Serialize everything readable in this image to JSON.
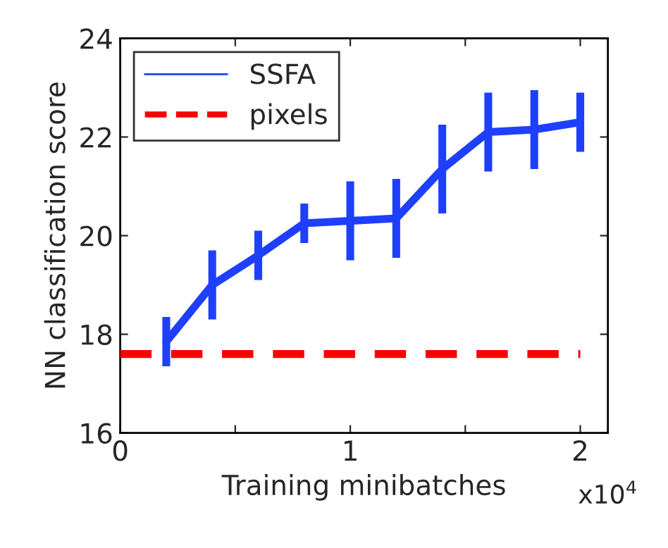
{
  "chart_data": {
    "type": "line",
    "xlabel": "Training minibatches",
    "ylabel": "NN classification score",
    "annotations": [
      "x10$^{4}$"
    ],
    "xlim": [
      0,
      2.12
    ],
    "xticks": [
      0,
      {
        "value": 0.5,
        "label": null
      },
      1,
      {
        "value": 1.5,
        "label": null
      },
      2
    ],
    "ylim": [
      16,
      24
    ],
    "yticks": [
      16,
      18,
      20,
      22,
      24
    ],
    "grid": false,
    "legend": "top left",
    "series": [
      {
        "name": "SSFA",
        "color": "#1f3fff",
        "line_style": "solid",
        "x": [
          0.2,
          0.4,
          0.6,
          0.8,
          1.0,
          1.2,
          1.4,
          1.6,
          1.8,
          2.0
        ],
        "values": [
          17.85,
          19.0,
          19.6,
          20.25,
          20.3,
          20.35,
          21.35,
          22.1,
          22.15,
          22.3
        ],
        "errors": [
          0.5,
          0.7,
          0.5,
          0.4,
          0.8,
          0.8,
          0.9,
          0.8,
          0.8,
          0.6
        ]
      },
      {
        "name": "pixels",
        "color": "#ff0000",
        "line_style": "dashed",
        "x": [
          0,
          2
        ],
        "values": [
          17.6,
          17.6
        ]
      }
    ]
  }
}
